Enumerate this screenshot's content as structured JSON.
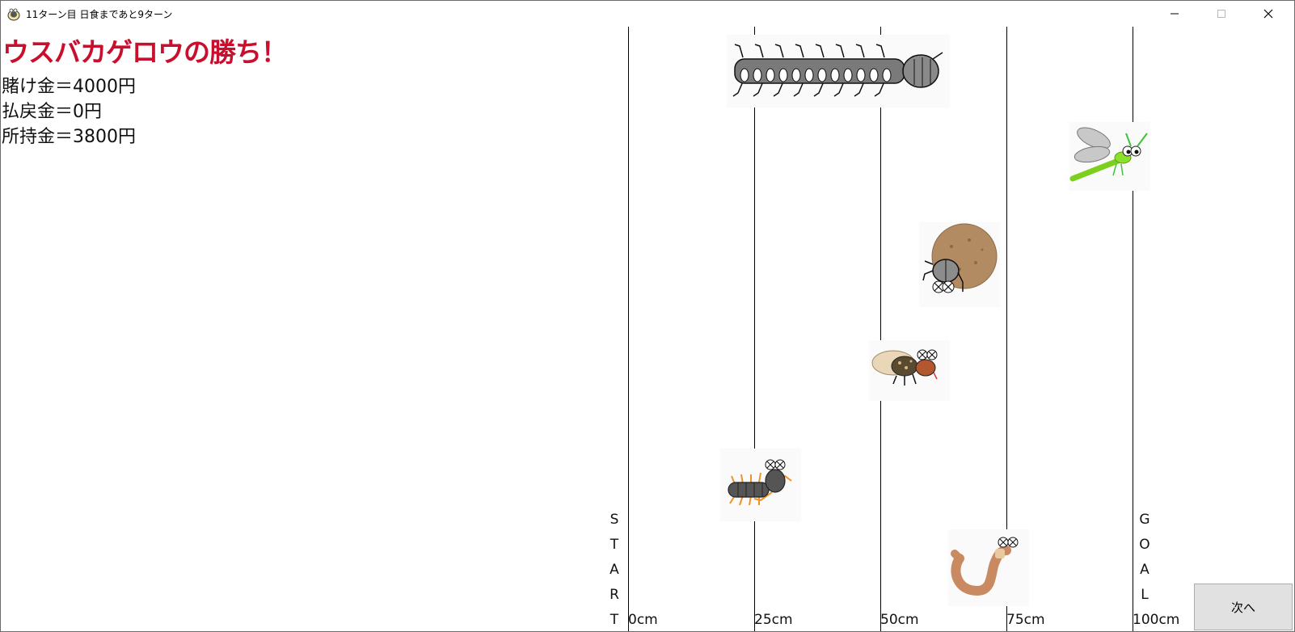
{
  "window": {
    "title": "11ターン目 日食まであと9ターン",
    "icon": "app-bug-icon",
    "controls": [
      "minimize-icon",
      "maximize-icon",
      "close-icon"
    ]
  },
  "result": {
    "winner_text": "ウスバカゲロウの勝ち！",
    "bet_line": "賭け金＝4000円",
    "payout_line": "払戻金＝0円",
    "balance_line": "所持金＝3800円",
    "winner_color": "#c8102e"
  },
  "track": {
    "distance_labels": [
      "0cm",
      "25cm",
      "50cm",
      "75cm",
      "100cm"
    ],
    "start_letters": [
      "S",
      "T",
      "A",
      "R",
      "T"
    ],
    "goal_letters": [
      "G",
      "O",
      "A",
      "L"
    ]
  },
  "racers": [
    {
      "icon": "millipede-icon",
      "lane": 1,
      "distance_cm": 45
    },
    {
      "icon": "dragonfly-icon",
      "lane": 2,
      "distance_cm": 100
    },
    {
      "icon": "dung-beetle-icon",
      "lane": 3,
      "distance_cm": 65
    },
    {
      "icon": "firefly-icon",
      "lane": 4,
      "distance_cm": 55
    },
    {
      "icon": "centipede-icon",
      "lane": 5,
      "distance_cm": 28
    },
    {
      "icon": "earthworm-icon",
      "lane": 6,
      "distance_cm": 72
    }
  ],
  "next_button": {
    "label": "次へ"
  }
}
